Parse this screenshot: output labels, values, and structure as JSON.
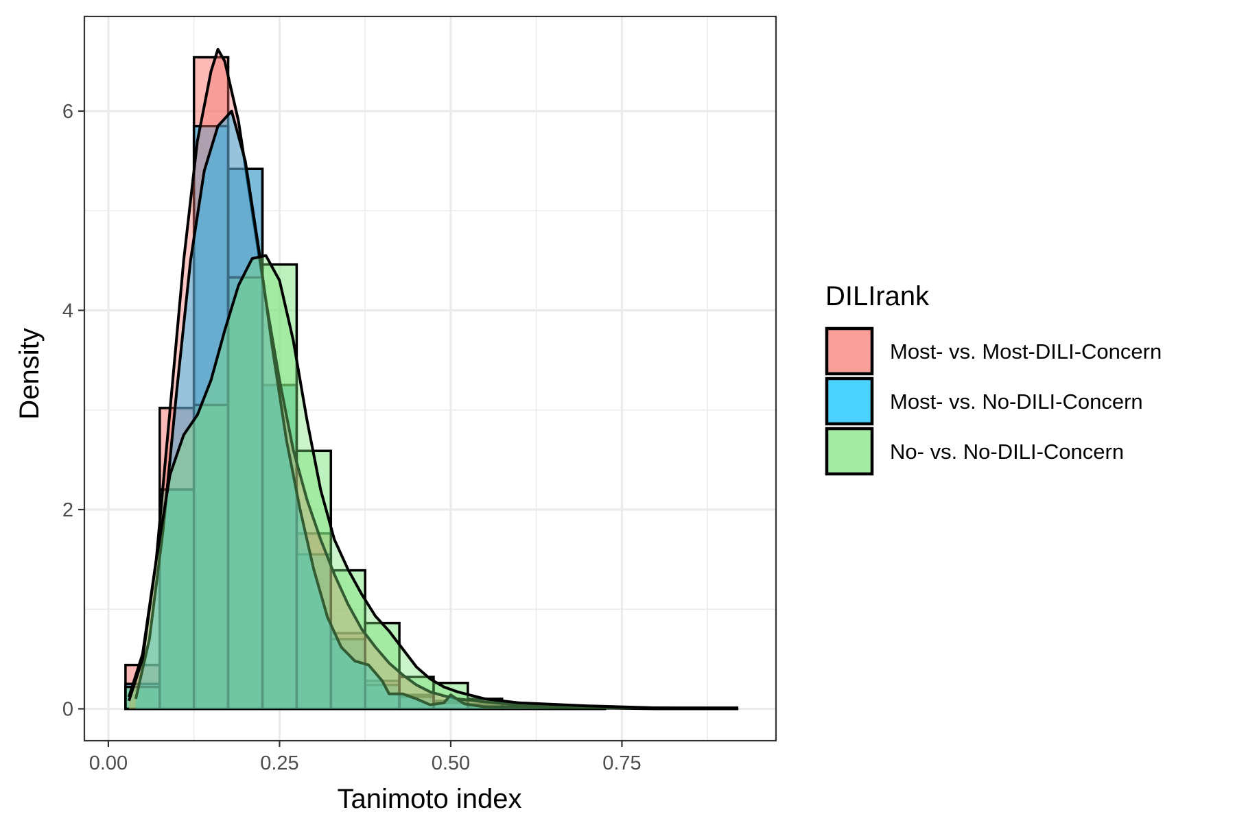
{
  "chart_data": {
    "type": "histogram",
    "xlabel": "Tanimoto index",
    "ylabel": "Density",
    "xlim": [
      -0.035,
      0.975
    ],
    "ylim": [
      -0.32,
      6.95
    ],
    "x_ticks": [
      0.0,
      0.25,
      0.5,
      0.75
    ],
    "x_tick_labels": [
      "0.00",
      "0.25",
      "0.50",
      "0.75"
    ],
    "y_ticks": [
      0,
      2,
      4,
      6
    ],
    "y_tick_labels": [
      "0",
      "2",
      "4",
      "6"
    ],
    "bin_width": 0.05,
    "grid": true,
    "legend": {
      "title": "DILIrank",
      "position": "right"
    },
    "series": [
      {
        "name": "Most- vs. Most-DILI-Concern",
        "color": "#F8766D",
        "bin_centers": [
          0.05,
          0.1,
          0.15,
          0.2,
          0.25,
          0.3,
          0.35,
          0.4,
          0.45,
          0.5,
          0.55,
          0.6,
          0.65,
          0.7
        ],
        "density": [
          0.44,
          3.02,
          6.54,
          5.42,
          3.25,
          1.76,
          0.76,
          0.28,
          0.14,
          0.08,
          0.05,
          0.03,
          0.02,
          0.01
        ],
        "curve_x": [
          0.03,
          0.05,
          0.07,
          0.09,
          0.11,
          0.13,
          0.15,
          0.16,
          0.17,
          0.19,
          0.21,
          0.23,
          0.25,
          0.27,
          0.29,
          0.31,
          0.33,
          0.35,
          0.37,
          0.39,
          0.41,
          0.43,
          0.45,
          0.47,
          0.49,
          0.51,
          0.55,
          0.6,
          0.7,
          0.8,
          0.92
        ],
        "curve_y": [
          0.12,
          0.55,
          1.5,
          3.0,
          4.5,
          5.7,
          6.4,
          6.62,
          6.5,
          5.9,
          5.0,
          4.1,
          3.3,
          2.6,
          2.1,
          1.7,
          1.35,
          1.05,
          0.8,
          0.62,
          0.46,
          0.34,
          0.24,
          0.17,
          0.13,
          0.1,
          0.07,
          0.04,
          0.02,
          0.01,
          0.0
        ]
      },
      {
        "name": "Most- vs. No-DILI-Concern",
        "color": "#00BFFF",
        "bin_centers": [
          0.05,
          0.1,
          0.15,
          0.2,
          0.25,
          0.3,
          0.35,
          0.4,
          0.45,
          0.5,
          0.55,
          0.6,
          0.65,
          0.7
        ],
        "density": [
          0.25,
          2.2,
          5.85,
          5.42,
          3.25,
          1.55,
          0.7,
          0.24,
          0.12,
          0.06,
          0.03,
          0.02,
          0.01,
          0.01
        ],
        "curve_x": [
          0.04,
          0.06,
          0.08,
          0.1,
          0.12,
          0.14,
          0.16,
          0.18,
          0.2,
          0.22,
          0.24,
          0.26,
          0.28,
          0.3,
          0.32,
          0.34,
          0.36,
          0.38,
          0.4,
          0.41,
          0.43,
          0.45,
          0.47,
          0.49,
          0.5,
          0.52,
          0.55,
          0.6,
          0.7,
          0.8,
          0.92
        ],
        "curve_y": [
          0.1,
          0.7,
          1.8,
          3.2,
          4.5,
          5.4,
          5.85,
          6.0,
          5.5,
          4.6,
          3.6,
          2.7,
          2.0,
          1.4,
          0.92,
          0.62,
          0.48,
          0.44,
          0.28,
          0.15,
          0.15,
          0.1,
          0.04,
          0.06,
          0.14,
          0.05,
          0.02,
          0.02,
          0.01,
          0.0,
          0.0
        ]
      },
      {
        "name": "No- vs. No-DILI-Concern",
        "color": "#7CE37C",
        "bin_centers": [
          0.05,
          0.1,
          0.15,
          0.2,
          0.25,
          0.3,
          0.35,
          0.4,
          0.45,
          0.5,
          0.55,
          0.6,
          0.65,
          0.7
        ],
        "density": [
          0.22,
          2.2,
          3.05,
          4.33,
          4.46,
          2.59,
          1.39,
          0.86,
          0.32,
          0.26,
          0.1,
          0.05,
          0.03,
          0.02
        ],
        "curve_x": [
          0.03,
          0.05,
          0.07,
          0.09,
          0.11,
          0.13,
          0.15,
          0.17,
          0.19,
          0.21,
          0.23,
          0.25,
          0.27,
          0.29,
          0.31,
          0.33,
          0.35,
          0.37,
          0.39,
          0.41,
          0.43,
          0.45,
          0.47,
          0.49,
          0.51,
          0.55,
          0.6,
          0.7,
          0.8,
          0.92
        ],
        "curve_y": [
          0.08,
          0.5,
          1.5,
          2.35,
          2.75,
          2.95,
          3.3,
          3.8,
          4.25,
          4.52,
          4.55,
          4.3,
          3.7,
          2.9,
          2.2,
          1.7,
          1.4,
          1.15,
          0.93,
          0.78,
          0.6,
          0.42,
          0.3,
          0.22,
          0.17,
          0.1,
          0.06,
          0.03,
          0.01,
          0.01,
          0.0
        ]
      }
    ]
  }
}
